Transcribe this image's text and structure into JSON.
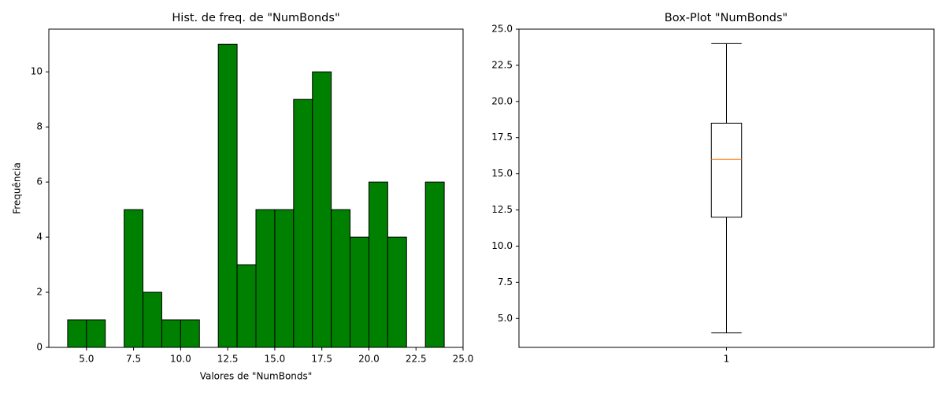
{
  "chart_data": [
    {
      "type": "histogram",
      "title": "Hist. de freq. de \"NumBonds\"",
      "xlabel": "Valores de \"NumBonds\"",
      "ylabel": "Frequência",
      "bins": [
        4,
        5,
        6,
        7,
        8,
        9,
        10,
        11,
        12,
        13,
        14,
        15,
        16,
        17,
        18,
        19,
        20,
        21,
        22,
        23,
        24
      ],
      "values": [
        1,
        1,
        0,
        5,
        2,
        1,
        1,
        0,
        11,
        3,
        5,
        5,
        9,
        10,
        5,
        4,
        6,
        4,
        0,
        6
      ],
      "color": "#008000",
      "edgecolor": "#000000",
      "xlim": [
        3,
        25
      ],
      "xticks": [
        {
          "value": 5,
          "label": "5.0"
        },
        {
          "value": 7.5,
          "label": "7.5"
        },
        {
          "value": 10,
          "label": "10.0"
        },
        {
          "value": 12.5,
          "label": "12.5"
        },
        {
          "value": 15,
          "label": "15.0"
        },
        {
          "value": 17.5,
          "label": "17.5"
        },
        {
          "value": 20,
          "label": "20.0"
        },
        {
          "value": 22.5,
          "label": "22.5"
        },
        {
          "value": 25,
          "label": "25.0"
        }
      ],
      "ylim": [
        0,
        11.55
      ],
      "yticks": [
        0,
        2,
        4,
        6,
        8,
        10
      ]
    },
    {
      "type": "box",
      "title": "Box-Plot \"NumBonds\"",
      "whislo": 4,
      "q1": 12,
      "median": 16,
      "q3": 18.5,
      "whishi": 24,
      "median_color": "#ff7f0e",
      "xlim": [
        0.5,
        1.5
      ],
      "xticks": [
        1
      ],
      "ylim": [
        3.0,
        25.0
      ],
      "yticks": [
        {
          "value": 5,
          "label": "5.0"
        },
        {
          "value": 7.5,
          "label": "7.5"
        },
        {
          "value": 10,
          "label": "10.0"
        },
        {
          "value": 12.5,
          "label": "12.5"
        },
        {
          "value": 15,
          "label": "15.0"
        },
        {
          "value": 17.5,
          "label": "17.5"
        },
        {
          "value": 20,
          "label": "20.0"
        },
        {
          "value": 22.5,
          "label": "22.5"
        },
        {
          "value": 25,
          "label": "25.0"
        }
      ]
    }
  ]
}
